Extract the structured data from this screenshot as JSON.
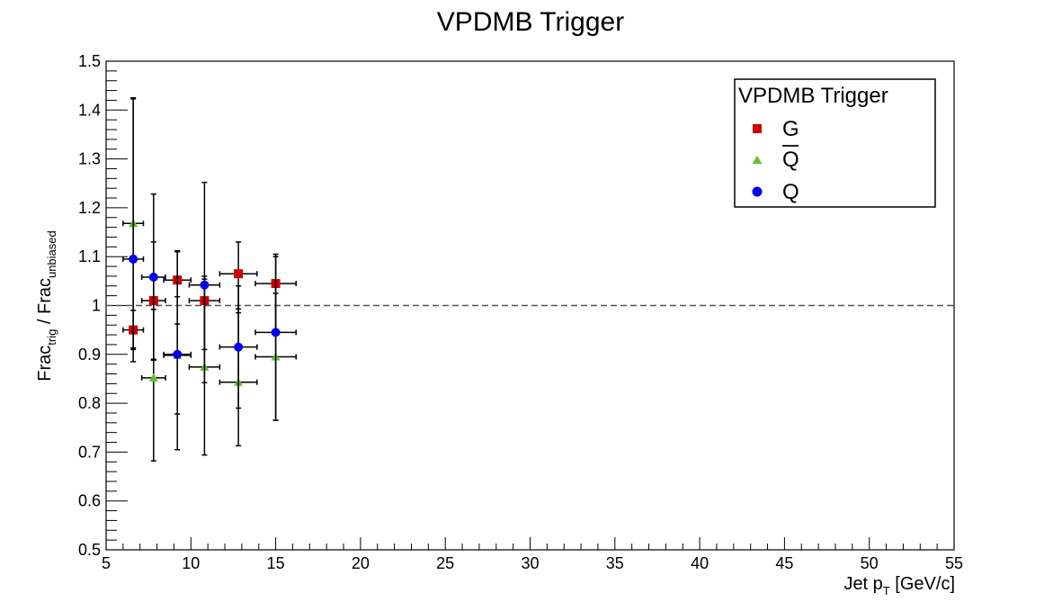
{
  "chart_data": {
    "type": "scatter",
    "title": "VPDMB Trigger",
    "xlabel": {
      "main": "Jet p",
      "sub": "T",
      "unit": " [GeV/c]"
    },
    "ylabel": {
      "p1": "Frac",
      "s1": "trig",
      "p2": " / Frac",
      "s2": "unbiased"
    },
    "xlim": [
      5,
      55
    ],
    "ylim": [
      0.5,
      1.5
    ],
    "x_major_ticks": [
      5,
      10,
      15,
      20,
      25,
      30,
      35,
      40,
      45,
      50,
      55
    ],
    "x_tick_labels": [
      "5",
      "10",
      "15",
      "20",
      "25",
      "30",
      "35",
      "40",
      "45",
      "50",
      "55"
    ],
    "y_major_ticks": [
      0.5,
      0.6,
      0.7,
      0.8,
      0.9,
      1.0,
      1.1,
      1.2,
      1.3,
      1.4,
      1.5
    ],
    "y_tick_labels": [
      "0.5",
      "0.6",
      "0.7",
      "0.8",
      "0.9",
      "1",
      "1.1",
      "1.2",
      "1.3",
      "1.4",
      "1.5"
    ],
    "reference_line": {
      "y": 1.0,
      "style": "dashed",
      "color": "#555555"
    },
    "grid": false,
    "legend": {
      "title": "VPDMB Trigger",
      "position": "top-right",
      "entries": [
        {
          "label": "G",
          "marker": "square",
          "color": "#cc0000",
          "overline": false
        },
        {
          "label": "Q",
          "marker": "triangle",
          "color": "#66bb33",
          "overline": true
        },
        {
          "label": "Q",
          "marker": "circle",
          "color": "#0000ee",
          "overline": false
        }
      ]
    },
    "series": [
      {
        "marker": "square",
        "color": "#cc0000",
        "points": [
          {
            "x": 6.6,
            "y": 0.95,
            "xerr": 0.6,
            "yerr_low": 0.04,
            "yerr_high": 0.04
          },
          {
            "x": 7.8,
            "y": 1.01,
            "xerr": 0.7,
            "yerr_low": 0.12,
            "yerr_high": 0.12
          },
          {
            "x": 9.2,
            "y": 1.052,
            "xerr": 0.8,
            "yerr_low": 0.09,
            "yerr_high": 0.06
          },
          {
            "x": 10.8,
            "y": 1.01,
            "xerr": 0.9,
            "yerr_low": 0.1,
            "yerr_high": 0.05
          },
          {
            "x": 12.8,
            "y": 1.065,
            "xerr": 1.1,
            "yerr_low": 0.08,
            "yerr_high": 0.065
          },
          {
            "x": 15.0,
            "y": 1.045,
            "xerr": 1.2,
            "yerr_low": 0.1,
            "yerr_high": 0.06
          }
        ]
      },
      {
        "marker": "triangle",
        "color": "#66bb33",
        "points": [
          {
            "x": 6.6,
            "y": 1.168,
            "xerr": 0.6,
            "yerr_low": 0.255,
            "yerr_high": 0.255
          },
          {
            "x": 7.8,
            "y": 0.852,
            "xerr": 0.7,
            "yerr_low": 0.17,
            "yerr_high": 0.14
          },
          {
            "x": 9.2,
            "y": 0.898,
            "xerr": 0.8,
            "yerr_low": 0.12,
            "yerr_high": 0.12
          },
          {
            "x": 10.8,
            "y": 0.874,
            "xerr": 0.9,
            "yerr_low": 0.18,
            "yerr_high": 0.18
          },
          {
            "x": 12.8,
            "y": 0.843,
            "xerr": 1.1,
            "yerr_low": 0.13,
            "yerr_high": 0.15
          },
          {
            "x": 15.0,
            "y": 0.895,
            "xerr": 1.2,
            "yerr_low": 0.13,
            "yerr_high": 0.13
          }
        ]
      },
      {
        "marker": "circle",
        "color": "#0000ee",
        "points": [
          {
            "x": 6.6,
            "y": 1.095,
            "xerr": 0.6,
            "yerr_low": 0.21,
            "yerr_high": 0.33
          },
          {
            "x": 7.8,
            "y": 1.058,
            "xerr": 0.7,
            "yerr_low": 0.17,
            "yerr_high": 0.17
          },
          {
            "x": 9.2,
            "y": 0.9,
            "xerr": 0.8,
            "yerr_low": 0.195,
            "yerr_high": 0.21
          },
          {
            "x": 10.8,
            "y": 1.042,
            "xerr": 0.9,
            "yerr_low": 0.2,
            "yerr_high": 0.21
          },
          {
            "x": 12.8,
            "y": 0.915,
            "xerr": 1.1,
            "yerr_low": 0.125,
            "yerr_high": 0.125
          },
          {
            "x": 15.0,
            "y": 0.945,
            "xerr": 1.2,
            "yerr_low": 0.18,
            "yerr_high": 0.155
          }
        ]
      }
    ]
  }
}
